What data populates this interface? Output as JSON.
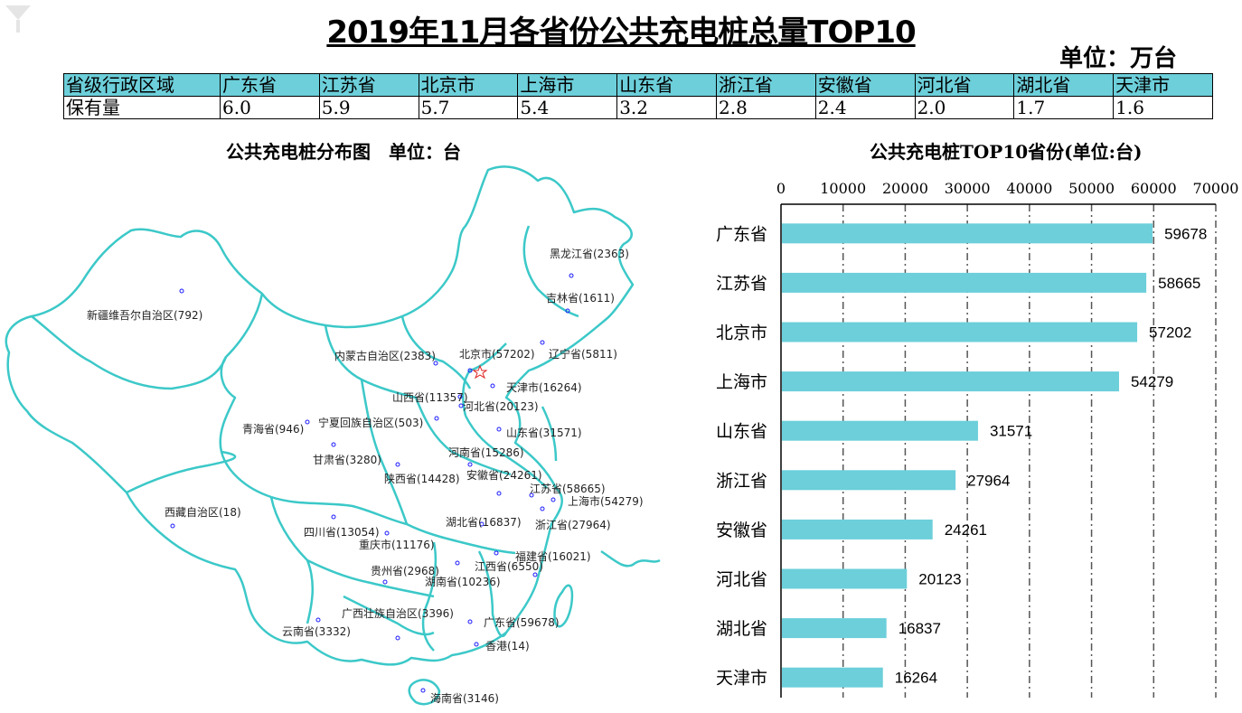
{
  "title": "2019年11月各省份公共充电桩总量TOP10",
  "unit": "单位：万台",
  "table": {
    "header_label": "省级行政区域",
    "row_label": "保有量",
    "provinces": [
      "广东省",
      "江苏省",
      "北京市",
      "上海市",
      "山东省",
      "浙江省",
      "安徽省",
      "河北省",
      "湖北省",
      "天津市"
    ],
    "values": [
      "6.0",
      "5.9",
      "5.7",
      "5.4",
      "3.2",
      "2.8",
      "2.4",
      "2.0",
      "1.7",
      "1.6"
    ]
  },
  "map": {
    "title": "公共充电桩分布图　单位：台",
    "labels": [
      "黑龙江省(2363)",
      "吉林省(1611)",
      "辽宁省(5811)",
      "新疆维吾尔自治区(792)",
      "内蒙古自治区(2383)",
      "北京市(57202)",
      "天津市(16264)",
      "山西省(11357)",
      "河北省(20123)",
      "山东省(31571)",
      "青海省(946)",
      "宁夏回族自治区(503)",
      "甘肃省(3280)",
      "河南省(15286)",
      "陕西省(14428)",
      "安徽省(24261)",
      "江苏省(58665)",
      "上海市(54279)",
      "西藏自治区(18)",
      "四川省(13054)",
      "湖北省(16837)",
      "浙江省(27964)",
      "重庆市(11176)",
      "福建省(16021)",
      "贵州省(2968)",
      "江西省(6550)",
      "湖南省(10236)",
      "广西壮族自治区(3396)",
      "广东省(59678)",
      "云南省(3332)",
      "香港(14)",
      "海南省(3146)"
    ],
    "border_color": "#3cc8c8",
    "marker_color": "#1a1aff"
  },
  "chart_data": {
    "type": "bar",
    "orientation": "horizontal",
    "title": "公共充电桩TOP10省份(单位:台)",
    "categories": [
      "广东省",
      "江苏省",
      "北京市",
      "上海市",
      "山东省",
      "浙江省",
      "安徽省",
      "河北省",
      "湖北省",
      "天津市"
    ],
    "values": [
      59678,
      58665,
      57202,
      54279,
      31571,
      27964,
      24261,
      20123,
      16837,
      16264
    ],
    "value_labels": [
      "59678",
      "58665",
      "57202",
      "54279",
      "31571",
      "27964",
      "24261",
      "20123",
      "16837",
      "16264"
    ],
    "xticks": [
      "0",
      "10000",
      "20000",
      "30000",
      "40000",
      "50000",
      "60000",
      "70000"
    ],
    "xlim": [
      0,
      70000
    ],
    "axis_position": "top",
    "grid": "vertical dashed",
    "bar_color": "#6ccfda"
  }
}
